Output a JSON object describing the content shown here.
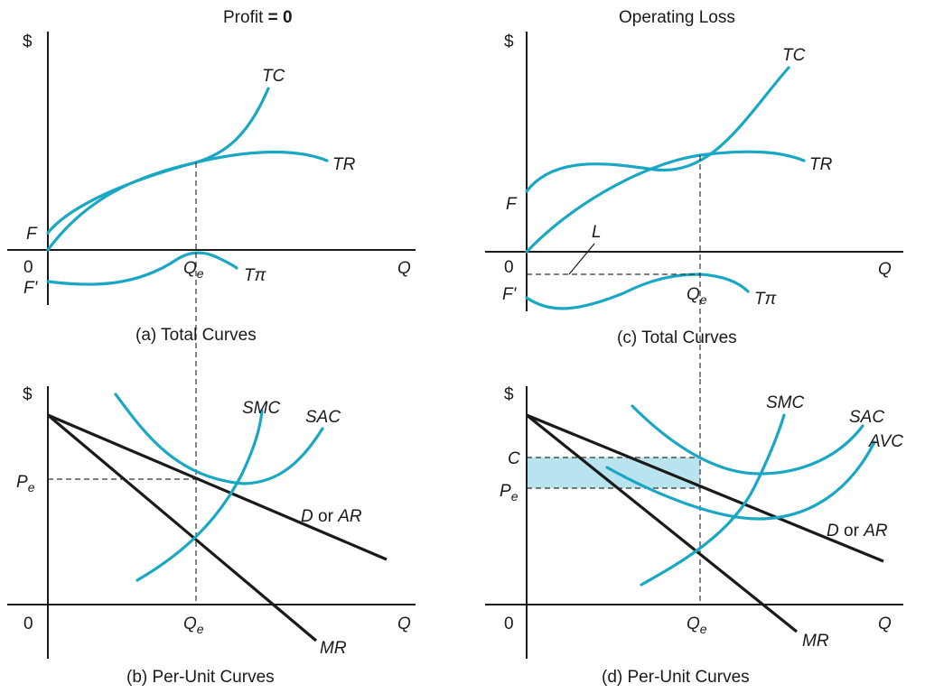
{
  "colors": {
    "curve": "#1aa7c4",
    "line": "#1a1a1a",
    "shade": "#b9e3ee"
  },
  "panel_a": {
    "heading_prefix": "Profit",
    "heading_eq": "= 0",
    "yaxis": "$",
    "xaxis": "Q",
    "origin": "0",
    "f": "F",
    "fprime": "F'",
    "tc": "TC",
    "tr": "TR",
    "qe_base": "Q",
    "qe_sub": "e",
    "tpi": "Tπ",
    "caption": "(a) Total Curves"
  },
  "panel_b": {
    "yaxis": "$",
    "xaxis": "Q",
    "origin": "0",
    "pe_base": "P",
    "pe_sub": "e",
    "smc": "SMC",
    "sac": "SAC",
    "d": "D",
    "or": "or",
    "ar": "AR",
    "mr": "MR",
    "qe_base": "Q",
    "qe_sub": "e",
    "caption": "(b) Per-Unit Curves"
  },
  "panel_c": {
    "heading": "Operating Loss",
    "yaxis": "$",
    "xaxis": "Q",
    "origin": "0",
    "f": "F",
    "fprime": "F'",
    "l": "L",
    "tc": "TC",
    "tr": "TR",
    "qe_base": "Q",
    "qe_sub": "e",
    "tpi": "Tπ",
    "caption": "(c) Total Curves"
  },
  "panel_d": {
    "yaxis": "$",
    "xaxis": "Q",
    "origin": "0",
    "c": "C",
    "pe_base": "P",
    "pe_sub": "e",
    "smc": "SMC",
    "sac": "SAC",
    "avc": "AVC",
    "d": "D",
    "or": "or",
    "ar": "AR",
    "mr": "MR",
    "qe_base": "Q",
    "qe_sub": "e",
    "caption": "(d) Per-Unit Curves"
  }
}
